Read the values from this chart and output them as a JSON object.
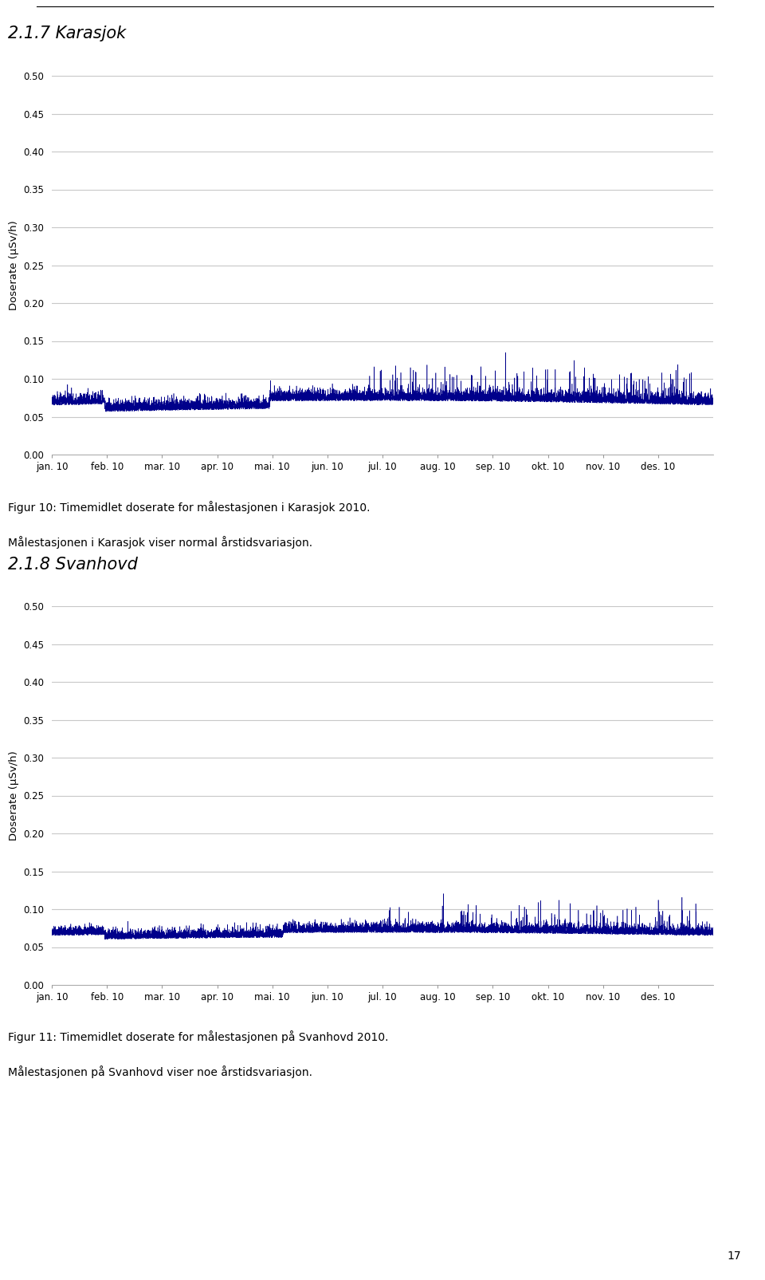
{
  "page_title_1": "2.1.7 Karasjok",
  "page_title_2": "2.1.8 Svanhovd",
  "ylabel": "Doserate (μSv/h)",
  "yticks": [
    0.0,
    0.05,
    0.1,
    0.15,
    0.2,
    0.25,
    0.3,
    0.35,
    0.4,
    0.45,
    0.5
  ],
  "xlabels": [
    "jan. 10",
    "feb. 10",
    "mar. 10",
    "apr. 10",
    "mai. 10",
    "jun. 10",
    "jul. 10",
    "aug. 10",
    "sep. 10",
    "okt. 10",
    "nov. 10",
    "des. 10"
  ],
  "caption1": "Figur 10: Timemidlet doserate for målestasjonen i Karasjok 2010.",
  "caption2": "Målestasjonen i Karasjok viser normal årstidsvariasjon.",
  "caption3": "Figur 11: Timemidlet doserate for målestasjonen på Svanhovd 2010.",
  "caption4": "Målestasjonen på Svanhovd viser noe årstidsvariasjon.",
  "page_number": "17",
  "line_color": "#00008B",
  "grid_color": "#C8C8C8",
  "background_color": "#FFFFFF",
  "ylim": [
    0.0,
    0.5
  ],
  "n_points": 8760,
  "karasjok_base": 0.065,
  "karasjok_noise": 0.007,
  "svanhovd_base": 0.065,
  "svanhovd_noise": 0.006
}
